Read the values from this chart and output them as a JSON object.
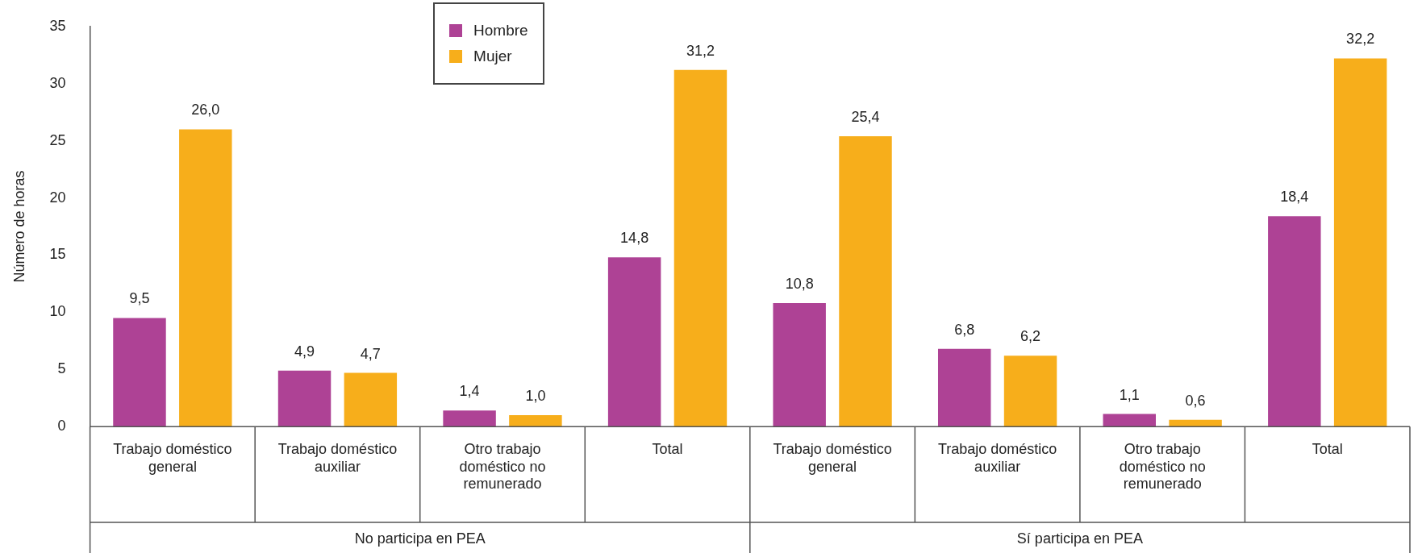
{
  "chart_data": {
    "type": "bar",
    "ylabel": "Número de horas",
    "categories": [
      "Trabajo doméstico general",
      "Trabajo doméstico auxiliar",
      "Otro trabajo doméstico no remunerado",
      "Total",
      "Trabajo doméstico general",
      "Trabajo doméstico auxiliar",
      "Otro trabajo doméstico no remunerado",
      "Total"
    ],
    "series": [
      {
        "name": "Hombre",
        "color": "#ae4295",
        "values": [
          9.5,
          4.9,
          1.4,
          14.8,
          10.8,
          6.8,
          1.1,
          18.4
        ],
        "value_labels": [
          "9,5",
          "4,9",
          "1,4",
          "14,8",
          "10,8",
          "6,8",
          "1,1",
          "18,4"
        ]
      },
      {
        "name": "Mujer",
        "color": "#f7ae1b",
        "values": [
          26.0,
          4.7,
          1.0,
          31.2,
          25.4,
          6.2,
          0.6,
          32.2
        ],
        "value_labels": [
          "26,0",
          "4,7",
          "1,0",
          "31,2",
          "25,4",
          "6,2",
          "0,6",
          "32,2"
        ]
      }
    ],
    "ylim": [
      0,
      35
    ],
    "yticks": [
      0,
      5,
      10,
      15,
      20,
      25,
      30,
      35
    ],
    "annotations": [
      "No participa en PEA",
      "Sí participa en PEA"
    ],
    "grid": false,
    "legend": "top left"
  }
}
